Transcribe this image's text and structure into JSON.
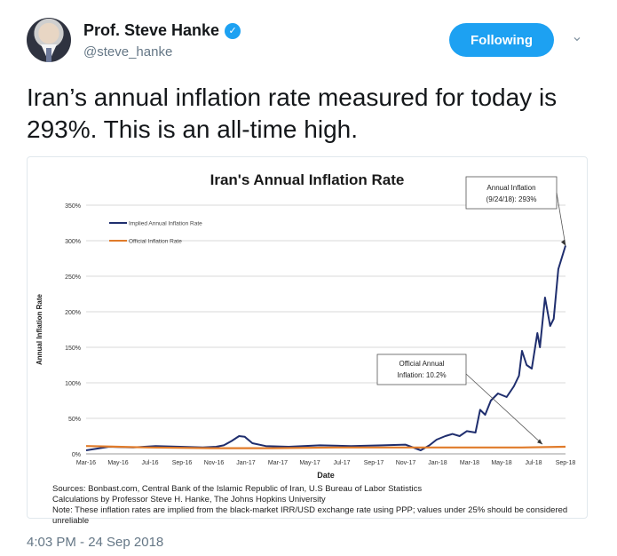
{
  "tweet": {
    "author_name": "Prof. Steve Hanke",
    "handle": "@steve_hanke",
    "follow_label": "Following",
    "text": "Iran’s annual inflation rate measured for today is 293%. This is an all-time high.",
    "timestamp": "4:03 PM - 24 Sep 2018",
    "verified_icon": "checkmark-verified-icon",
    "menu_icon": "chevron-down-icon",
    "accent_color": "#1da1f2"
  },
  "chart_data": {
    "type": "line",
    "title": "Iran's Annual Inflation Rate",
    "xlabel": "Date",
    "ylabel": "Annual Inflation Rate",
    "ylim": [
      0,
      350
    ],
    "y_ticks": [
      "0%",
      "50%",
      "100%",
      "150%",
      "200%",
      "250%",
      "300%",
      "350%"
    ],
    "x_ticks": [
      "Mar-16",
      "May-16",
      "Jul-16",
      "Sep-16",
      "Nov-16",
      "Jan-17",
      "Mar-17",
      "May-17",
      "Jul-17",
      "Sep-17",
      "Nov-17",
      "Jan-18",
      "Mar-18",
      "May-18",
      "Jul-18",
      "Sep-18"
    ],
    "legend_position": "top-left",
    "grid": true,
    "series": [
      {
        "name": "Implied Annual Inflation Rate",
        "color": "#1f2e6e",
        "x": [
          "2016-03-01",
          "2016-04-15",
          "2016-06-01",
          "2016-07-15",
          "2016-09-01",
          "2016-10-15",
          "2016-11-10",
          "2016-11-25",
          "2016-12-10",
          "2016-12-25",
          "2017-01-05",
          "2017-01-20",
          "2017-02-15",
          "2017-04-01",
          "2017-06-01",
          "2017-08-01",
          "2017-10-01",
          "2017-11-15",
          "2017-12-15",
          "2018-01-01",
          "2018-01-15",
          "2018-02-01",
          "2018-02-15",
          "2018-03-01",
          "2018-03-15",
          "2018-04-01",
          "2018-04-10",
          "2018-04-20",
          "2018-05-01",
          "2018-05-15",
          "2018-06-01",
          "2018-06-15",
          "2018-06-25",
          "2018-07-01",
          "2018-07-10",
          "2018-07-20",
          "2018-07-31",
          "2018-08-05",
          "2018-08-15",
          "2018-08-25",
          "2018-09-01",
          "2018-09-10",
          "2018-09-24"
        ],
        "y": [
          5,
          10,
          9,
          11,
          10,
          9,
          10,
          12,
          18,
          25,
          24,
          15,
          11,
          10,
          12,
          11,
          12,
          13,
          5,
          12,
          20,
          25,
          28,
          25,
          32,
          30,
          62,
          55,
          75,
          85,
          80,
          95,
          110,
          145,
          125,
          120,
          170,
          150,
          220,
          180,
          190,
          260,
          293
        ]
      },
      {
        "name": "Official Inflation Rate",
        "color": "#e07b2a",
        "x": [
          "2016-03-01",
          "2016-07-01",
          "2016-11-01",
          "2017-03-01",
          "2017-07-01",
          "2017-11-01",
          "2018-03-01",
          "2018-07-01",
          "2018-09-24"
        ],
        "y": [
          11,
          9,
          8,
          8,
          9,
          9,
          9,
          9,
          10
        ]
      }
    ],
    "annotations": [
      {
        "text_line1": "Annual Inflation",
        "text_line2": "(9/24/18): 293%"
      },
      {
        "text_line1": "Official Annual",
        "text_line2": "Inflation: 10.2%"
      }
    ],
    "notes": [
      "Sources: Bonbast.com, Central Bank of the Islamic Republic of Iran, U.S Bureau of Labor Statistics",
      "Calculations by Professor Steve H. Hanke, The Johns Hopkins University",
      "Note: These inflation rates are implied from the black-market IRR/USD exchange rate using PPP; values under 25% should be considered unreliable"
    ]
  }
}
